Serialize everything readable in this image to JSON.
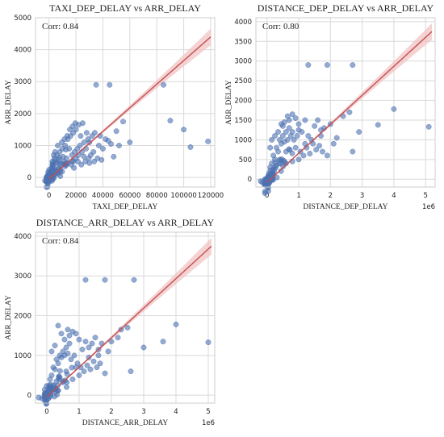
{
  "colors": {
    "plot_bg": "#ffffff",
    "grid": "#d9d9d9",
    "point": "#4c72b0",
    "regression_line": "#c44e52",
    "ci_band": "#f2c4c4",
    "frame": "#cccccc",
    "text": "#222222"
  },
  "chart_data": [
    {
      "type": "scatter",
      "title": "TAXI_DEP_DELAY vs ARR_DELAY",
      "annotation": "Corr: 0.84",
      "xlabel": "TAXI_DEP_DELAY",
      "ylabel": "ARR_DELAY",
      "xlim": [
        -10000,
        123000
      ],
      "ylim": [
        -300,
        5000
      ],
      "xticks": [
        0,
        20000,
        40000,
        60000,
        80000,
        100000,
        120000
      ],
      "xtick_labels": [
        "0",
        "20000",
        "40000",
        "60000",
        "80000",
        "100000",
        "120000"
      ],
      "yticks": [
        0,
        1000,
        2000,
        3000,
        4000,
        5000
      ],
      "ytick_labels": [
        "0",
        "1000",
        "2000",
        "3000",
        "4000",
        "5000"
      ],
      "x_offset_label": "",
      "grid": true,
      "regression": {
        "x": [
          0,
          120000
        ],
        "y": [
          -40,
          4400
        ]
      },
      "points": [
        [
          35000,
          2900
        ],
        [
          45000,
          2900
        ],
        [
          85000,
          2900
        ],
        [
          90000,
          1780
        ],
        [
          100000,
          1500
        ],
        [
          105000,
          950
        ],
        [
          118000,
          1130
        ],
        [
          55000,
          1750
        ],
        [
          60000,
          1100
        ],
        [
          52000,
          1000
        ],
        [
          48000,
          650
        ],
        [
          42000,
          1200
        ],
        [
          38000,
          1300
        ],
        [
          40000,
          900
        ],
        [
          33000,
          800
        ],
        [
          30000,
          1100
        ],
        [
          28000,
          1400
        ],
        [
          25000,
          1700
        ],
        [
          22000,
          1650
        ],
        [
          20000,
          1500
        ],
        [
          18000,
          1400
        ],
        [
          16000,
          1300
        ],
        [
          14000,
          1200
        ],
        [
          15000,
          900
        ],
        [
          12000,
          1000
        ],
        [
          10000,
          900
        ],
        [
          8000,
          800
        ],
        [
          6000,
          700
        ],
        [
          4000,
          600
        ],
        [
          3000,
          400
        ],
        [
          2000,
          300
        ],
        [
          1000,
          150
        ],
        [
          500,
          50
        ],
        [
          0,
          -50
        ],
        [
          -3000,
          -100
        ],
        [
          1500,
          0
        ],
        [
          2500,
          100
        ],
        [
          5000,
          200
        ],
        [
          7000,
          300
        ],
        [
          9000,
          400
        ],
        [
          11000,
          500
        ],
        [
          13000,
          600
        ],
        [
          17000,
          700
        ],
        [
          19000,
          800
        ],
        [
          21000,
          900
        ],
        [
          23000,
          1000
        ],
        [
          26000,
          1100
        ],
        [
          29000,
          1200
        ],
        [
          32000,
          1300
        ],
        [
          34000,
          1400
        ],
        [
          36000,
          600
        ],
        [
          27000,
          500
        ],
        [
          24000,
          400
        ],
        [
          21500,
          500
        ],
        [
          18500,
          300
        ],
        [
          16500,
          400
        ],
        [
          24500,
          800
        ],
        [
          31000,
          700
        ],
        [
          37000,
          1000
        ],
        [
          9500,
          1100
        ],
        [
          11500,
          1200
        ],
        [
          13500,
          1300
        ],
        [
          6500,
          1000
        ],
        [
          4500,
          800
        ],
        [
          3500,
          700
        ],
        [
          2500,
          500
        ],
        [
          15500,
          1500
        ],
        [
          17500,
          1600
        ],
        [
          19500,
          1700
        ],
        [
          23500,
          1300
        ],
        [
          27500,
          900
        ],
        [
          29500,
          600
        ],
        [
          33500,
          500
        ],
        [
          22000,
          700
        ],
        [
          20000,
          600
        ],
        [
          18000,
          500
        ],
        [
          14000,
          450
        ],
        [
          12000,
          350
        ],
        [
          8500,
          250
        ],
        [
          6000,
          150
        ],
        [
          26000,
          650
        ],
        [
          30000,
          450
        ],
        [
          39000,
          550
        ],
        [
          44000,
          1150
        ],
        [
          46000,
          1050
        ],
        [
          50000,
          1450
        ],
        [
          10500,
          650
        ],
        [
          7500,
          550
        ],
        [
          5500,
          450
        ]
      ]
    },
    {
      "type": "scatter",
      "title": "DISTANCE_DEP_DELAY vs ARR_DELAY",
      "annotation": "Corr: 0.80",
      "xlabel": "DISTANCE_DEP_DELAY",
      "ylabel": "ARR_DELAY",
      "xlim": [
        -350000,
        5300000
      ],
      "ylim": [
        -200,
        4100
      ],
      "xticks": [
        0,
        1000000,
        2000000,
        3000000,
        4000000,
        5000000
      ],
      "xtick_labels": [
        "0",
        "1",
        "2",
        "3",
        "4",
        "5"
      ],
      "yticks": [
        0,
        500,
        1000,
        1500,
        2000,
        2500,
        3000,
        3500,
        4000
      ],
      "ytick_labels": [
        "0",
        "500",
        "1000",
        "1500",
        "2000",
        "2500",
        "3000",
        "3500",
        "4000"
      ],
      "x_offset_label": "1e6",
      "grid": true,
      "regression": {
        "x": [
          0,
          5200000
        ],
        "y": [
          -80,
          3750
        ]
      },
      "points": [
        [
          1300000,
          2900
        ],
        [
          1900000,
          2900
        ],
        [
          2700000,
          2900
        ],
        [
          4000000,
          1780
        ],
        [
          3500000,
          1380
        ],
        [
          5100000,
          1330
        ],
        [
          2900000,
          1200
        ],
        [
          2200000,
          1050
        ],
        [
          2600000,
          1700
        ],
        [
          2400000,
          1600
        ],
        [
          2000000,
          1400
        ],
        [
          2100000,
          900
        ],
        [
          1800000,
          1300
        ],
        [
          1700000,
          1100
        ],
        [
          1600000,
          1500
        ],
        [
          1500000,
          1350
        ],
        [
          1400000,
          1000
        ],
        [
          1200000,
          900
        ],
        [
          1100000,
          1200
        ],
        [
          1000000,
          1400
        ],
        [
          900000,
          1550
        ],
        [
          800000,
          1650
        ],
        [
          700000,
          1300
        ],
        [
          600000,
          1200
        ],
        [
          500000,
          1100
        ],
        [
          400000,
          1000
        ],
        [
          300000,
          800
        ],
        [
          200000,
          600
        ],
        [
          100000,
          300
        ],
        [
          50000,
          100
        ],
        [
          0,
          -50
        ],
        [
          -150000,
          -80
        ],
        [
          -200000,
          -50
        ],
        [
          150000,
          400
        ],
        [
          250000,
          500
        ],
        [
          350000,
          700
        ],
        [
          450000,
          900
        ],
        [
          550000,
          950
        ],
        [
          650000,
          1000
        ],
        [
          750000,
          1100
        ],
        [
          850000,
          1000
        ],
        [
          950000,
          1100
        ],
        [
          1050000,
          700
        ],
        [
          1150000,
          600
        ],
        [
          1250000,
          800
        ],
        [
          1350000,
          650
        ],
        [
          1450000,
          900
        ],
        [
          1550000,
          750
        ],
        [
          1650000,
          850
        ],
        [
          1750000,
          700
        ],
        [
          2700000,
          700
        ],
        [
          1900000,
          600
        ],
        [
          900000,
          800
        ],
        [
          600000,
          700
        ],
        [
          400000,
          500
        ],
        [
          300000,
          350
        ],
        [
          200000,
          250
        ],
        [
          120000,
          150
        ],
        [
          500000,
          1350
        ],
        [
          700000,
          1500
        ],
        [
          800000,
          1200
        ],
        [
          1000000,
          1250
        ],
        [
          1200000,
          1500
        ],
        [
          350000,
          1200
        ],
        [
          450000,
          1400
        ],
        [
          550000,
          1450
        ],
        [
          650000,
          1600
        ],
        [
          100000,
          800
        ],
        [
          150000,
          1000
        ],
        [
          250000,
          1100
        ],
        [
          1300000,
          1100
        ],
        [
          1700000,
          1250
        ],
        [
          1000000,
          500
        ],
        [
          800000,
          450
        ],
        [
          600000,
          400
        ]
      ]
    },
    {
      "type": "scatter",
      "title": "DISTANCE_ARR_DELAY vs ARR_DELAY",
      "annotation": "Corr: 0.84",
      "xlabel": "DISTANCE_ARR_DELAY",
      "ylabel": "ARR_DELAY",
      "xlim": [
        -350000,
        5200000
      ],
      "ylim": [
        -200,
        4100
      ],
      "xticks": [
        0,
        1000000,
        2000000,
        3000000,
        4000000,
        5000000
      ],
      "xtick_labels": [
        "0",
        "1",
        "2",
        "3",
        "4",
        "5"
      ],
      "yticks": [
        0,
        1000,
        2000,
        3000,
        4000
      ],
      "ytick_labels": [
        "0",
        "1000",
        "2000",
        "3000",
        "4000"
      ],
      "x_offset_label": "1e6",
      "grid": true,
      "regression": {
        "x": [
          0,
          5100000
        ],
        "y": [
          -40,
          3750
        ]
      },
      "points": [
        [
          1200000,
          2900
        ],
        [
          1800000,
          2900
        ],
        [
          2700000,
          2900
        ],
        [
          4000000,
          1780
        ],
        [
          3600000,
          1350
        ],
        [
          5000000,
          1330
        ],
        [
          3000000,
          1200
        ],
        [
          2300000,
          1650
        ],
        [
          2500000,
          1700
        ],
        [
          2200000,
          1450
        ],
        [
          2000000,
          1350
        ],
        [
          1900000,
          1100
        ],
        [
          1700000,
          1300
        ],
        [
          1600000,
          1000
        ],
        [
          1500000,
          1450
        ],
        [
          1400000,
          1300
        ],
        [
          1300000,
          950
        ],
        [
          1100000,
          1150
        ],
        [
          1000000,
          1400
        ],
        [
          900000,
          1550
        ],
        [
          800000,
          1600
        ],
        [
          700000,
          1300
        ],
        [
          600000,
          1200
        ],
        [
          500000,
          1100
        ],
        [
          400000,
          1000
        ],
        [
          300000,
          900
        ],
        [
          200000,
          700
        ],
        [
          100000,
          400
        ],
        [
          50000,
          150
        ],
        [
          0,
          -50
        ],
        [
          -150000,
          -80
        ],
        [
          -250000,
          -60
        ],
        [
          150000,
          500
        ],
        [
          250000,
          650
        ],
        [
          350000,
          800
        ],
        [
          450000,
          950
        ],
        [
          550000,
          1000
        ],
        [
          650000,
          1050
        ],
        [
          750000,
          900
        ],
        [
          850000,
          1000
        ],
        [
          950000,
          800
        ],
        [
          1050000,
          700
        ],
        [
          1150000,
          600
        ],
        [
          1250000,
          750
        ],
        [
          1350000,
          650
        ],
        [
          1450000,
          850
        ],
        [
          1550000,
          700
        ],
        [
          1650000,
          800
        ],
        [
          2600000,
          600
        ],
        [
          1800000,
          550
        ],
        [
          900000,
          700
        ],
        [
          600000,
          600
        ],
        [
          400000,
          450
        ],
        [
          300000,
          350
        ],
        [
          200000,
          250
        ],
        [
          100000,
          100
        ],
        [
          350000,
          1750
        ],
        [
          450000,
          1550
        ],
        [
          550000,
          1400
        ],
        [
          650000,
          1650
        ],
        [
          150000,
          1100
        ],
        [
          250000,
          1250
        ],
        [
          1200000,
          1350
        ],
        [
          1000000,
          500
        ],
        [
          800000,
          400
        ],
        [
          700000,
          1500
        ],
        [
          1300000,
          1200
        ],
        [
          1600000,
          1150
        ]
      ]
    }
  ]
}
